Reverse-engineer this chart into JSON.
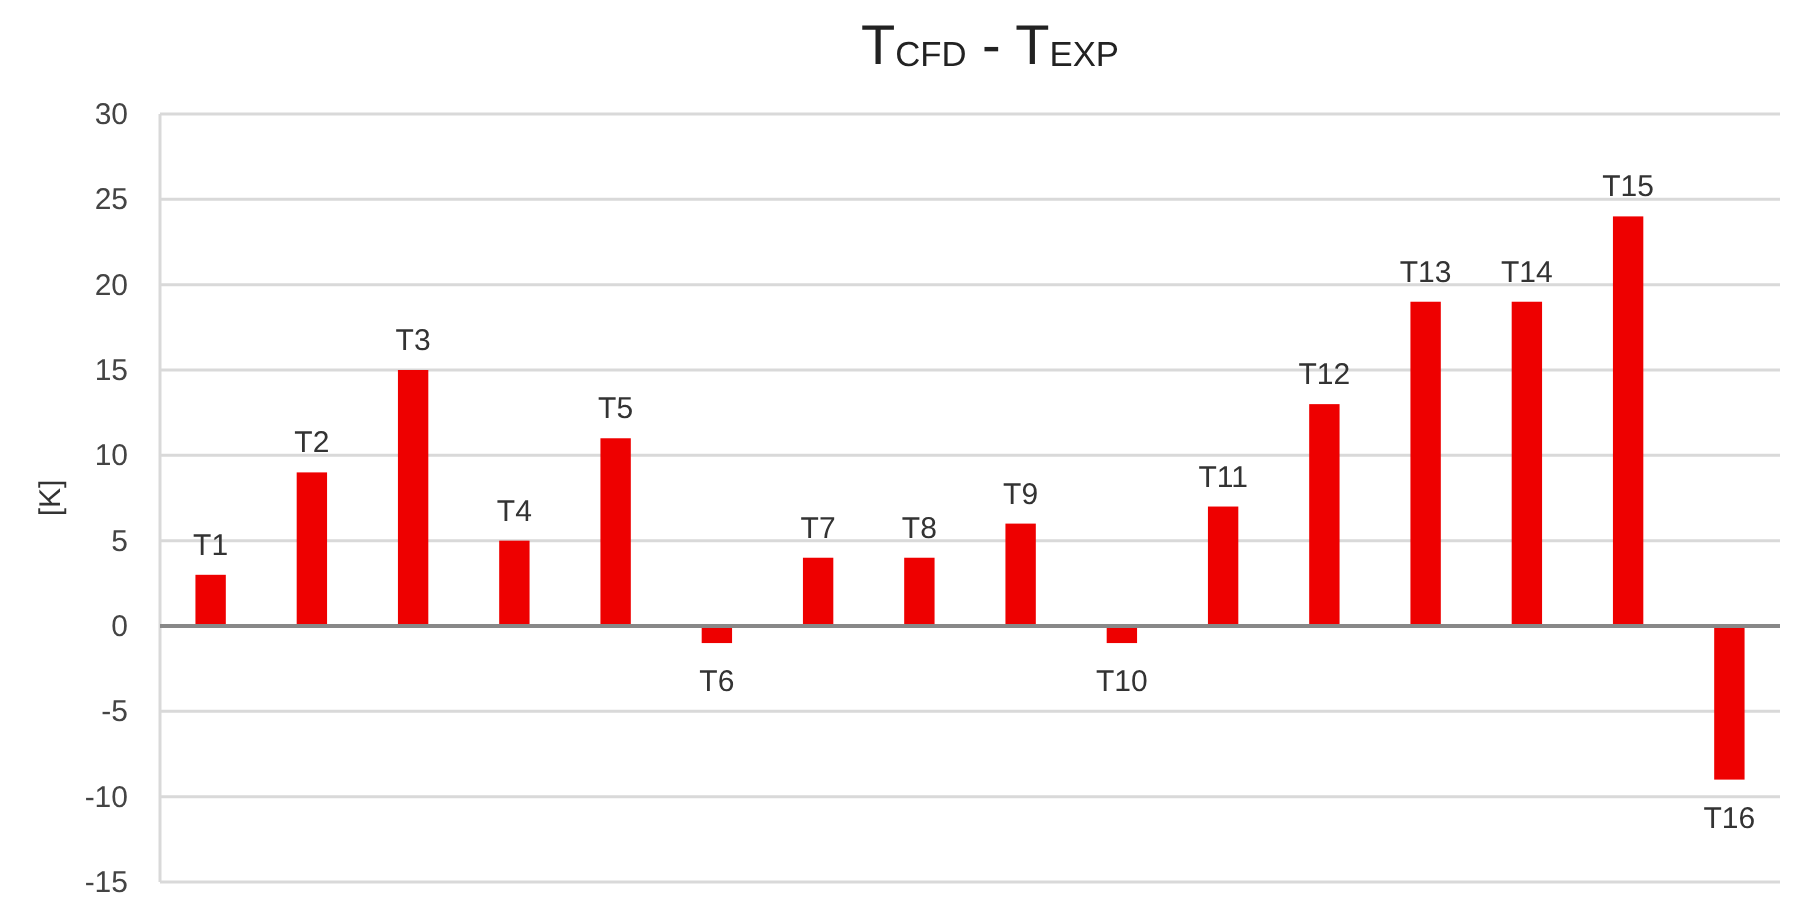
{
  "chart_data": {
    "type": "bar",
    "title": "T$_{CFD}$ - T$_{EXP}$",
    "ylabel": "[K]",
    "categories": [
      "T1",
      "T2",
      "T3",
      "T4",
      "T5",
      "T6",
      "T7",
      "T8",
      "T9",
      "T10",
      "T11",
      "T12",
      "T13",
      "T14",
      "T15",
      "T16"
    ],
    "values": [
      3,
      9,
      15,
      5,
      11,
      -1,
      4,
      4,
      6,
      -1,
      7,
      13,
      19,
      19,
      24,
      -9
    ],
    "color": "#ee0000",
    "ylim": [
      -15,
      30
    ],
    "yticks": [
      -15,
      -10,
      -5,
      0,
      5,
      10,
      15,
      20,
      25,
      30
    ],
    "grid": "y"
  }
}
